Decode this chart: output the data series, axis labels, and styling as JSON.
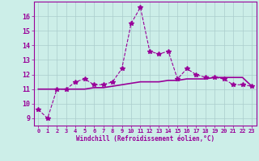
{
  "xlabel": "Windchill (Refroidissement éolien,°C)",
  "bg_color": "#cceee8",
  "grid_color": "#aacccc",
  "line_color": "#990099",
  "x_hours": [
    0,
    1,
    2,
    3,
    4,
    5,
    6,
    7,
    8,
    9,
    10,
    11,
    12,
    13,
    14,
    15,
    16,
    17,
    18,
    19,
    20,
    21,
    22,
    23
  ],
  "windchill_values": [
    9.6,
    9.0,
    11.0,
    11.0,
    11.5,
    11.7,
    11.3,
    11.3,
    11.5,
    12.4,
    15.5,
    16.6,
    13.6,
    13.4,
    13.6,
    11.7,
    12.4,
    12.0,
    11.8,
    11.8,
    11.7,
    11.3,
    11.3,
    11.2
  ],
  "temp_values": [
    11.0,
    11.0,
    11.0,
    11.0,
    11.0,
    11.0,
    11.1,
    11.1,
    11.2,
    11.3,
    11.4,
    11.5,
    11.5,
    11.5,
    11.6,
    11.6,
    11.7,
    11.7,
    11.7,
    11.8,
    11.8,
    11.8,
    11.8,
    11.2
  ],
  "ylim": [
    8.5,
    17.0
  ],
  "yticks": [
    9,
    10,
    11,
    12,
    13,
    14,
    15,
    16
  ],
  "xlim": [
    -0.5,
    23.5
  ],
  "xticks": [
    0,
    1,
    2,
    3,
    4,
    5,
    6,
    7,
    8,
    9,
    10,
    11,
    12,
    13,
    14,
    15,
    16,
    17,
    18,
    19,
    20,
    21,
    22,
    23
  ],
  "marker": "*",
  "marker_size": 4
}
